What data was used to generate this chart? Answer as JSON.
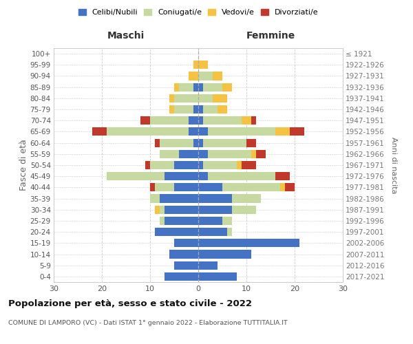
{
  "age_groups": [
    "0-4",
    "5-9",
    "10-14",
    "15-19",
    "20-24",
    "25-29",
    "30-34",
    "35-39",
    "40-44",
    "45-49",
    "50-54",
    "55-59",
    "60-64",
    "65-69",
    "70-74",
    "75-79",
    "80-84",
    "85-89",
    "90-94",
    "95-99",
    "100+"
  ],
  "birth_years": [
    "2017-2021",
    "2012-2016",
    "2007-2011",
    "2002-2006",
    "1997-2001",
    "1992-1996",
    "1987-1991",
    "1982-1986",
    "1977-1981",
    "1972-1976",
    "1967-1971",
    "1962-1966",
    "1957-1961",
    "1952-1956",
    "1947-1951",
    "1942-1946",
    "1937-1941",
    "1932-1936",
    "1927-1931",
    "1922-1926",
    "≤ 1921"
  ],
  "colors": {
    "celibe": "#4472c4",
    "coniugato": "#c5d9a0",
    "vedovo": "#f5c242",
    "divorziato": "#c0392b"
  },
  "male": {
    "celibe": [
      7,
      5,
      6,
      5,
      9,
      7,
      7,
      8,
      5,
      7,
      5,
      4,
      1,
      2,
      2,
      1,
      0,
      1,
      0,
      0,
      0
    ],
    "coniugato": [
      0,
      0,
      0,
      0,
      0,
      1,
      1,
      2,
      4,
      12,
      5,
      4,
      7,
      17,
      8,
      4,
      5,
      3,
      0,
      0,
      0
    ],
    "vedovo": [
      0,
      0,
      0,
      0,
      0,
      0,
      1,
      0,
      0,
      0,
      0,
      0,
      0,
      0,
      0,
      1,
      1,
      1,
      2,
      1,
      0
    ],
    "divorziato": [
      0,
      0,
      0,
      0,
      0,
      0,
      0,
      0,
      1,
      0,
      1,
      0,
      1,
      3,
      2,
      0,
      0,
      0,
      0,
      0,
      0
    ]
  },
  "female": {
    "celibe": [
      8,
      4,
      11,
      21,
      6,
      5,
      7,
      7,
      5,
      2,
      1,
      2,
      1,
      2,
      1,
      1,
      0,
      1,
      0,
      0,
      0
    ],
    "coniugato": [
      0,
      0,
      0,
      0,
      1,
      2,
      5,
      6,
      12,
      14,
      7,
      9,
      9,
      14,
      8,
      3,
      3,
      4,
      3,
      0,
      0
    ],
    "vedovo": [
      0,
      0,
      0,
      0,
      0,
      0,
      0,
      0,
      1,
      0,
      1,
      1,
      0,
      3,
      2,
      2,
      3,
      2,
      2,
      2,
      0
    ],
    "divorziato": [
      0,
      0,
      0,
      0,
      0,
      0,
      0,
      0,
      2,
      3,
      3,
      2,
      2,
      3,
      1,
      0,
      0,
      0,
      0,
      0,
      0
    ]
  },
  "xlim": 30,
  "title": "Popolazione per età, sesso e stato civile - 2022",
  "subtitle": "COMUNE DI LAMPORO (VC) - Dati ISTAT 1° gennaio 2022 - Elaborazione TUTTITALIA.IT",
  "ylabel_left": "Fasce di età",
  "ylabel_right": "Anni di nascita",
  "xlabel_left": "Maschi",
  "xlabel_right": "Femmine",
  "background_color": "#ffffff",
  "grid_color": "#cccccc"
}
